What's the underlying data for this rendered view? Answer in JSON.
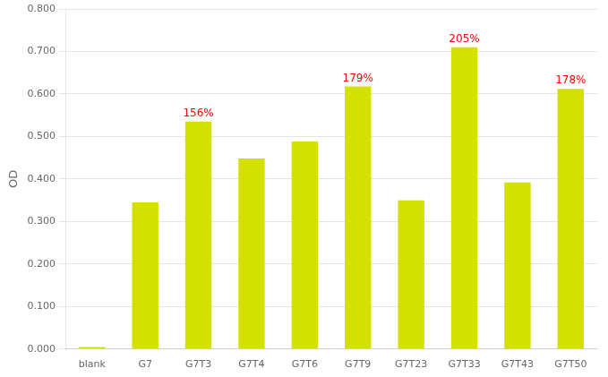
{
  "chart_data": {
    "type": "bar",
    "categories": [
      "blank",
      "G7",
      "G7T3",
      "G7T4",
      "G7T6",
      "G7T9",
      "G7T23",
      "G7T33",
      "G7T43",
      "G7T50"
    ],
    "values": [
      0.005,
      0.345,
      0.535,
      0.448,
      0.488,
      0.618,
      0.35,
      0.71,
      0.392,
      0.612
    ],
    "color": "#d4e000",
    "ylabel": "OD",
    "ylim": [
      0.0,
      0.8
    ],
    "yticks": [
      {
        "value": 0.0,
        "label": "0.000"
      },
      {
        "value": 0.1,
        "label": "0.100"
      },
      {
        "value": 0.2,
        "label": "0.200"
      },
      {
        "value": 0.3,
        "label": "0.300"
      },
      {
        "value": 0.4,
        "label": "0.400"
      },
      {
        "value": 0.5,
        "label": "0.500"
      },
      {
        "value": 0.6,
        "label": "0.600"
      },
      {
        "value": 0.7,
        "label": "0.700"
      },
      {
        "value": 0.8,
        "label": "0.800"
      }
    ],
    "grid": true,
    "annotations": [
      {
        "x": "G7T3",
        "text": "156%",
        "color": "red"
      },
      {
        "x": "G7T9",
        "text": "179%",
        "color": "red"
      },
      {
        "x": "G7T33",
        "text": "205%",
        "color": "red"
      },
      {
        "x": "G7T50",
        "text": "178%",
        "color": "red"
      }
    ]
  }
}
